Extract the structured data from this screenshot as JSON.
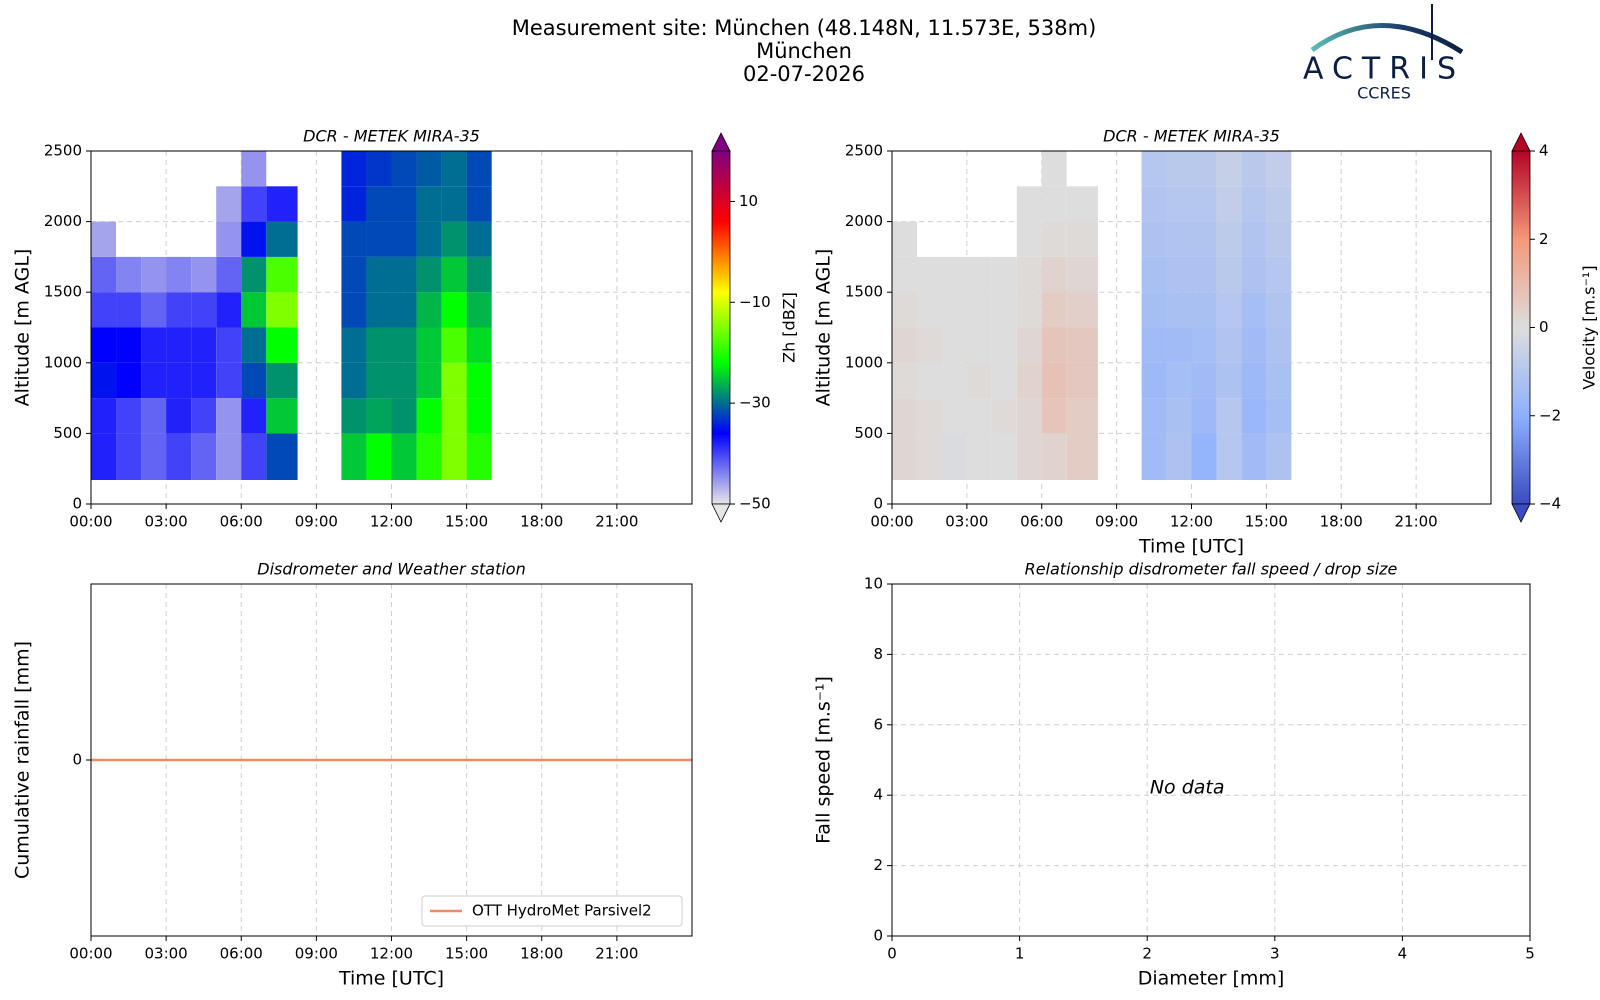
{
  "figure": {
    "title_lines": [
      "Measurement site: München (48.148N, 11.573E, 538m)",
      "München",
      "02-07-2026"
    ]
  },
  "logo": {
    "text": "ACTRIS",
    "subtext": "CCRES"
  },
  "chart_data": [
    {
      "type": "heatmap",
      "title": "DCR - METEK MIRA-35",
      "ylabel": "Altitude [m AGL]",
      "xlim": [
        0,
        24
      ],
      "xticks": [
        {
          "value": 0,
          "label": "00:00"
        },
        {
          "value": 3,
          "label": "03:00"
        },
        {
          "value": 6,
          "label": "06:00"
        },
        {
          "value": 9,
          "label": "09:00"
        },
        {
          "value": 12,
          "label": "12:00"
        },
        {
          "value": 15,
          "label": "15:00"
        },
        {
          "value": 18,
          "label": "18:00"
        },
        {
          "value": 21,
          "label": "21:00"
        }
      ],
      "ylim": [
        0,
        2500
      ],
      "yticks": [
        0,
        500,
        1000,
        1500,
        2000,
        2500
      ],
      "grid": true,
      "x_bins": [
        0,
        1,
        2,
        3,
        4,
        5,
        6,
        7,
        8.25,
        10,
        11,
        12,
        13,
        14,
        15,
        16
      ],
      "y_bins": [
        170,
        500,
        750,
        1000,
        1250,
        1500,
        1750,
        2000,
        2250,
        2500
      ],
      "z": [
        [
          -38,
          -40,
          -42,
          -40,
          -42,
          -45,
          -40,
          -32,
          null,
          -25,
          -22,
          -25,
          -20,
          -15,
          -20
        ],
        [
          -38,
          -40,
          -42,
          -38,
          -40,
          -45,
          -38,
          -25,
          null,
          -28,
          -27,
          -28,
          -22,
          -15,
          -22
        ],
        [
          -35,
          -36,
          -38,
          -38,
          -38,
          -40,
          -32,
          -28,
          null,
          -30,
          -28,
          -28,
          -25,
          -15,
          -22
        ],
        [
          -36,
          -36,
          -38,
          -38,
          -38,
          -40,
          -30,
          -22,
          null,
          -30,
          -28,
          -28,
          -25,
          -18,
          -24
        ],
        [
          -40,
          -40,
          -42,
          -40,
          -40,
          -38,
          -25,
          -15,
          null,
          -32,
          -30,
          -30,
          -26,
          -22,
          -26
        ],
        [
          -42,
          -44,
          -45,
          -44,
          -45,
          -42,
          -28,
          -18,
          null,
          -32,
          -30,
          -30,
          -28,
          -25,
          -28
        ],
        [
          -46,
          null,
          null,
          null,
          null,
          -45,
          -35,
          -30,
          null,
          -32,
          -32,
          -32,
          -30,
          -28,
          -30
        ],
        [
          null,
          null,
          null,
          null,
          null,
          -46,
          -40,
          -38,
          null,
          -34,
          -32,
          -32,
          -30,
          -30,
          -32
        ],
        [
          null,
          null,
          null,
          null,
          null,
          null,
          -45,
          null,
          null,
          -34,
          -33,
          -32,
          -31,
          -30,
          -32
        ]
      ],
      "clim": [
        -50,
        20
      ],
      "colormap": [
        "#e6e6e6",
        "#0000ff",
        "#00ff00",
        "#ffff00",
        "#ff0000",
        "#800080"
      ],
      "cbar_label": "Zh [dBZ]",
      "cbar_ticks": [
        {
          "value": -50,
          "label": "−50"
        },
        {
          "value": -30,
          "label": "−30"
        },
        {
          "value": -10,
          "label": "−10"
        },
        10
      ]
    },
    {
      "type": "heatmap",
      "title": "DCR - METEK MIRA-35",
      "xlabel": "Time [UTC]",
      "ylabel": "Altitude [m AGL]",
      "xlim": [
        0,
        24
      ],
      "xticks": [
        {
          "value": 0,
          "label": "00:00"
        },
        {
          "value": 3,
          "label": "03:00"
        },
        {
          "value": 6,
          "label": "06:00"
        },
        {
          "value": 9,
          "label": "09:00"
        },
        {
          "value": 12,
          "label": "12:00"
        },
        {
          "value": 15,
          "label": "15:00"
        },
        {
          "value": 18,
          "label": "18:00"
        },
        {
          "value": 21,
          "label": "21:00"
        }
      ],
      "ylim": [
        0,
        2500
      ],
      "yticks": [
        0,
        500,
        1000,
        1500,
        2000,
        2500
      ],
      "grid": true,
      "x_bins": [
        0,
        1,
        2,
        3,
        4,
        5,
        6,
        7,
        8.25,
        10,
        11,
        12,
        13,
        14,
        15,
        16
      ],
      "y_bins": [
        170,
        500,
        750,
        1000,
        1250,
        1500,
        1750,
        2000,
        2250,
        2500
      ],
      "z": [
        [
          0.2,
          0.1,
          -0.1,
          0,
          0,
          0.2,
          0.3,
          0.5,
          null,
          -1.5,
          -1.2,
          -1.8,
          -1.0,
          -1.5,
          -1.2
        ],
        [
          0.2,
          0.1,
          0,
          0,
          0.1,
          0.2,
          0.7,
          0.5,
          null,
          -1.5,
          -1.3,
          -1.6,
          -1.0,
          -1.7,
          -1.4
        ],
        [
          0.1,
          0,
          0,
          0.1,
          0,
          0.3,
          0.8,
          0.6,
          null,
          -1.6,
          -1.4,
          -1.5,
          -1.2,
          -1.6,
          -1.3
        ],
        [
          0.2,
          0.1,
          0,
          0,
          0,
          0.2,
          0.7,
          0.6,
          null,
          -1.5,
          -1.5,
          -1.4,
          -1.1,
          -1.5,
          -1.2
        ],
        [
          0.1,
          0,
          0,
          0,
          0,
          0.1,
          0.5,
          0.4,
          null,
          -1.4,
          -1.3,
          -1.3,
          -1.0,
          -1.4,
          -1.1
        ],
        [
          0,
          0,
          0,
          0,
          0,
          0.1,
          0.3,
          0.2,
          null,
          -1.3,
          -1.2,
          -1.2,
          -0.9,
          -1.2,
          -1.0
        ],
        [
          0,
          null,
          null,
          null,
          null,
          0,
          0.1,
          0.1,
          null,
          -1.2,
          -1.1,
          -1.1,
          -0.8,
          -1.1,
          -0.9
        ],
        [
          null,
          null,
          null,
          null,
          null,
          0,
          0,
          0,
          null,
          -1.1,
          -1.0,
          -1.0,
          -0.7,
          -1.0,
          -0.8
        ],
        [
          null,
          null,
          null,
          null,
          null,
          null,
          0,
          null,
          null,
          -1.0,
          -0.9,
          -0.9,
          -0.6,
          -0.9,
          -0.7
        ]
      ],
      "clim": [
        -4,
        4
      ],
      "colormap": [
        "#3b4cc0",
        "#8db0fe",
        "#dddddd",
        "#f4987a",
        "#b40426"
      ],
      "cbar_label": "Velocity [m.s⁻¹]",
      "cbar_ticks": [
        {
          "value": -4,
          "label": "−4"
        },
        {
          "value": -2,
          "label": "−2"
        },
        0,
        2,
        4
      ]
    },
    {
      "type": "line",
      "title": "Disdrometer and Weather station",
      "xlabel": "Time [UTC]",
      "ylabel": "Cumulative rainfall [mm]",
      "xlim": [
        0,
        24
      ],
      "xticks": [
        {
          "value": 0,
          "label": "00:00"
        },
        {
          "value": 3,
          "label": "03:00"
        },
        {
          "value": 6,
          "label": "06:00"
        },
        {
          "value": 9,
          "label": "09:00"
        },
        {
          "value": 12,
          "label": "12:00"
        },
        {
          "value": 15,
          "label": "15:00"
        },
        {
          "value": 18,
          "label": "18:00"
        },
        {
          "value": 21,
          "label": "21:00"
        }
      ],
      "ylim": [
        -1,
        1
      ],
      "yticks": [
        0
      ],
      "grid": true,
      "legend": "lower right",
      "x": [
        0,
        24
      ],
      "series": [
        {
          "name": "OTT HydroMet Parsivel2",
          "color": "#ef8a62",
          "values": [
            0,
            0
          ]
        }
      ]
    },
    {
      "type": "scatter",
      "title": "Relationship disdrometer fall speed / drop size",
      "xlabel": "Diameter [mm]",
      "ylabel": "Fall speed [m.s⁻¹]",
      "xlim": [
        0,
        5
      ],
      "xticks": [
        0,
        1,
        2,
        3,
        4,
        5
      ],
      "ylim": [
        0,
        10
      ],
      "yticks": [
        0,
        2,
        4,
        6,
        8,
        10
      ],
      "grid": true,
      "annotation": "No data"
    }
  ]
}
